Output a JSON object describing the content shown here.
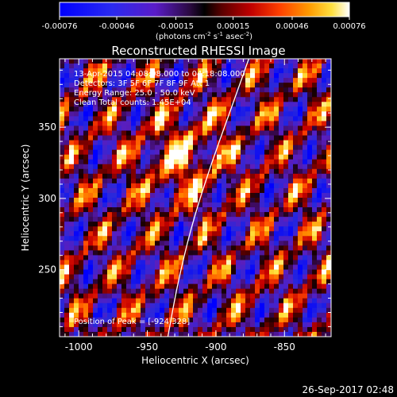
{
  "colorbar": {
    "tick_labels": [
      "-0.00076",
      "-0.00046",
      "-0.00015",
      "0.00015",
      "0.00046",
      "0.00076"
    ],
    "tick_values": [
      -0.00076,
      -0.00046,
      -0.00015,
      0.00015,
      0.00046,
      0.00076
    ],
    "range": [
      -0.00076,
      0.00076
    ],
    "units": {
      "prefix": "(photons cm",
      "sup1": "-2",
      "mid1": " s",
      "sup2": "-1",
      "mid2": " asec",
      "sup3": "-2",
      "suffix": ")"
    }
  },
  "plot": {
    "title": "Reconstructed RHESSI Image",
    "info_lines": [
      "13-Apr-2015 04:08:08.000 to 04:18:08.000",
      "Detectors: 3F 5F 6F 7F 8F 9F  Att 1",
      "Energy Range: 25.0 - 50.0 keV",
      "Clean     Total counts: 1.45E+04"
    ],
    "peak_label": "Position of Peak = [-924,328]",
    "xlabel": "Heliocentric X (arcsec)",
    "ylabel": "Heliocentric Y (arcsec)",
    "x_range": [
      -1014,
      -816
    ],
    "y_range": [
      203,
      398
    ],
    "x_ticks": [
      -1000,
      -950,
      -900,
      -850
    ],
    "x_tick_labels": [
      "-1000",
      "-950",
      "-900",
      "-850"
    ],
    "y_ticks": [
      250,
      300,
      350
    ],
    "y_tick_labels": [
      "250",
      "300",
      "350"
    ],
    "limb_curve": {
      "description_color": "#ffffff",
      "points_arcsec": [
        [
          -935,
          203
        ],
        [
          -928,
          240
        ],
        [
          -918,
          280
        ],
        [
          -905,
          320
        ],
        [
          -890,
          360
        ],
        [
          -876,
          398
        ]
      ]
    },
    "peak_position": [
      -924,
      328
    ]
  },
  "footer": {
    "timestamp": "26-Sep-2017 02:48"
  }
}
